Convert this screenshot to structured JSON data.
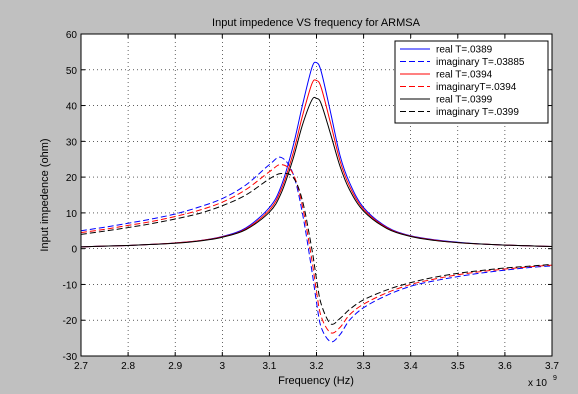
{
  "chart_data": {
    "type": "line",
    "title": "Input impedence VS frequency for ARMSA",
    "xlabel": "Frequency (Hz)",
    "ylabel": "Input impedence (ohm)",
    "x_multiplier_label": "x 10",
    "x_multiplier_exponent": "9",
    "xlim": [
      2.7,
      3.7
    ],
    "ylim": [
      -30,
      60
    ],
    "xticks": [
      "2.7",
      "2.8",
      "2.9",
      "3",
      "3.1",
      "3.2",
      "3.3",
      "3.4",
      "3.5",
      "3.6",
      "3.7"
    ],
    "yticks": [
      "60",
      "50",
      "40",
      "30",
      "20",
      "10",
      "0",
      "-10",
      "-20",
      "-30"
    ],
    "grid": true,
    "legend_position": "top-right",
    "x": [
      2.7,
      2.75,
      2.8,
      2.85,
      2.9,
      2.95,
      3.0,
      3.05,
      3.1,
      3.125,
      3.15,
      3.17,
      3.19,
      3.2,
      3.21,
      3.23,
      3.25,
      3.27,
      3.3,
      3.35,
      3.4,
      3.45,
      3.5,
      3.55,
      3.6,
      3.65,
      3.7
    ],
    "series": [
      {
        "name": "real T=.0389",
        "color": "#0000ff",
        "dash": "solid",
        "values": [
          0.5,
          0.7,
          0.9,
          1.2,
          1.6,
          2.2,
          3.4,
          5.8,
          11.5,
          17.5,
          28.5,
          40.0,
          50.5,
          52.0,
          49.5,
          38.0,
          26.0,
          18.5,
          11.5,
          6.0,
          3.6,
          2.5,
          1.8,
          1.3,
          1.0,
          0.8,
          0.6
        ]
      },
      {
        "name": "imaginary T=.03885",
        "color": "#0000ff",
        "dash": "dashed",
        "values": [
          5.0,
          6.0,
          7.1,
          8.3,
          9.7,
          11.6,
          14.0,
          17.8,
          23.5,
          25.5,
          21.0,
          10.0,
          -6.0,
          -15.0,
          -22.0,
          -26.0,
          -24.0,
          -20.0,
          -16.5,
          -13.0,
          -10.5,
          -9.0,
          -7.8,
          -6.8,
          -6.0,
          -5.3,
          -4.8
        ]
      },
      {
        "name": "real T=.0394",
        "color": "#ff0000",
        "dash": "solid",
        "values": [
          0.5,
          0.7,
          0.9,
          1.2,
          1.6,
          2.2,
          3.3,
          5.5,
          10.8,
          16.5,
          26.5,
          37.0,
          46.0,
          47.0,
          45.0,
          35.0,
          24.5,
          17.5,
          11.0,
          5.8,
          3.5,
          2.4,
          1.7,
          1.3,
          1.0,
          0.8,
          0.6
        ]
      },
      {
        "name": "imaginaryT=.0394",
        "color": "#ff0000",
        "dash": "dashed",
        "values": [
          4.5,
          5.4,
          6.5,
          7.6,
          9.0,
          10.7,
          13.0,
          16.5,
          21.5,
          23.5,
          21.0,
          12.0,
          -3.0,
          -12.0,
          -19.0,
          -23.5,
          -22.0,
          -18.5,
          -15.5,
          -12.3,
          -10.0,
          -8.5,
          -7.3,
          -6.4,
          -5.7,
          -5.1,
          -4.6
        ]
      },
      {
        "name": "real T=.0399",
        "color": "#000000",
        "dash": "solid",
        "values": [
          0.5,
          0.7,
          0.9,
          1.2,
          1.5,
          2.1,
          3.2,
          5.3,
          10.2,
          15.5,
          25.0,
          34.5,
          41.5,
          42.0,
          40.5,
          32.0,
          23.0,
          16.5,
          10.5,
          5.6,
          3.4,
          2.3,
          1.7,
          1.3,
          1.0,
          0.8,
          0.6
        ]
      },
      {
        "name": "imaginary T=.0399",
        "color": "#000000",
        "dash": "dashed",
        "values": [
          4.0,
          4.9,
          5.9,
          7.0,
          8.3,
          9.8,
          12.0,
          15.0,
          19.5,
          21.0,
          20.0,
          13.5,
          0.0,
          -8.5,
          -15.5,
          -21.0,
          -19.5,
          -17.0,
          -14.3,
          -11.5,
          -9.5,
          -8.0,
          -6.9,
          -6.1,
          -5.4,
          -4.9,
          -4.4
        ]
      }
    ]
  }
}
